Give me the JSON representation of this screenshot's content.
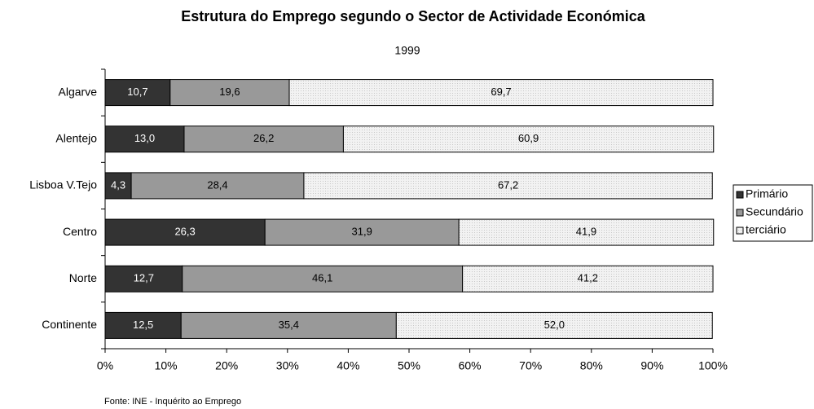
{
  "chart_data": {
    "type": "bar",
    "orientation": "horizontal",
    "stacked": true,
    "title": "Estrutura do Emprego segundo o Sector de Actividade Económica",
    "subtitle": "1999",
    "source": "Fonte: INE - Inquérito ao Emprego",
    "categories": [
      "Algarve",
      "Alentejo",
      "Lisboa V.Tejo",
      "Centro",
      "Norte",
      "Continente"
    ],
    "series": [
      {
        "name": "Primário",
        "color": "#333333",
        "label_color": "#ffffff",
        "values": [
          10.7,
          13.0,
          4.3,
          26.3,
          12.7,
          12.5
        ],
        "value_labels": [
          "10,7",
          "13,0",
          "4,3",
          "26,3",
          "12,7",
          "12,5"
        ]
      },
      {
        "name": "Secundário",
        "color": "#999999",
        "label_color": "#000000",
        "values": [
          19.6,
          26.2,
          28.4,
          31.9,
          46.1,
          35.4
        ],
        "value_labels": [
          "19,6",
          "26,2",
          "28,4",
          "31,9",
          "46,1",
          "35,4"
        ]
      },
      {
        "name": "terciário",
        "color": "#eaeaea",
        "label_color": "#000000",
        "values": [
          69.7,
          60.9,
          67.2,
          41.9,
          41.2,
          52.0
        ],
        "value_labels": [
          "69,7",
          "60,9",
          "67,2",
          "41,9",
          "41,2",
          "52,0"
        ]
      }
    ],
    "xlim": [
      0,
      100
    ],
    "xticks": [
      {
        "value": 0,
        "label": "0%"
      },
      {
        "value": 10,
        "label": "10%"
      },
      {
        "value": 20,
        "label": "20%"
      },
      {
        "value": 30,
        "label": "30%"
      },
      {
        "value": 40,
        "label": "40%"
      },
      {
        "value": 50,
        "label": "50%"
      },
      {
        "value": 60,
        "label": "60%"
      },
      {
        "value": 70,
        "label": "70%"
      },
      {
        "value": 80,
        "label": "80%"
      },
      {
        "value": 90,
        "label": "90%"
      },
      {
        "value": 100,
        "label": "100%"
      }
    ],
    "legend": "right"
  }
}
